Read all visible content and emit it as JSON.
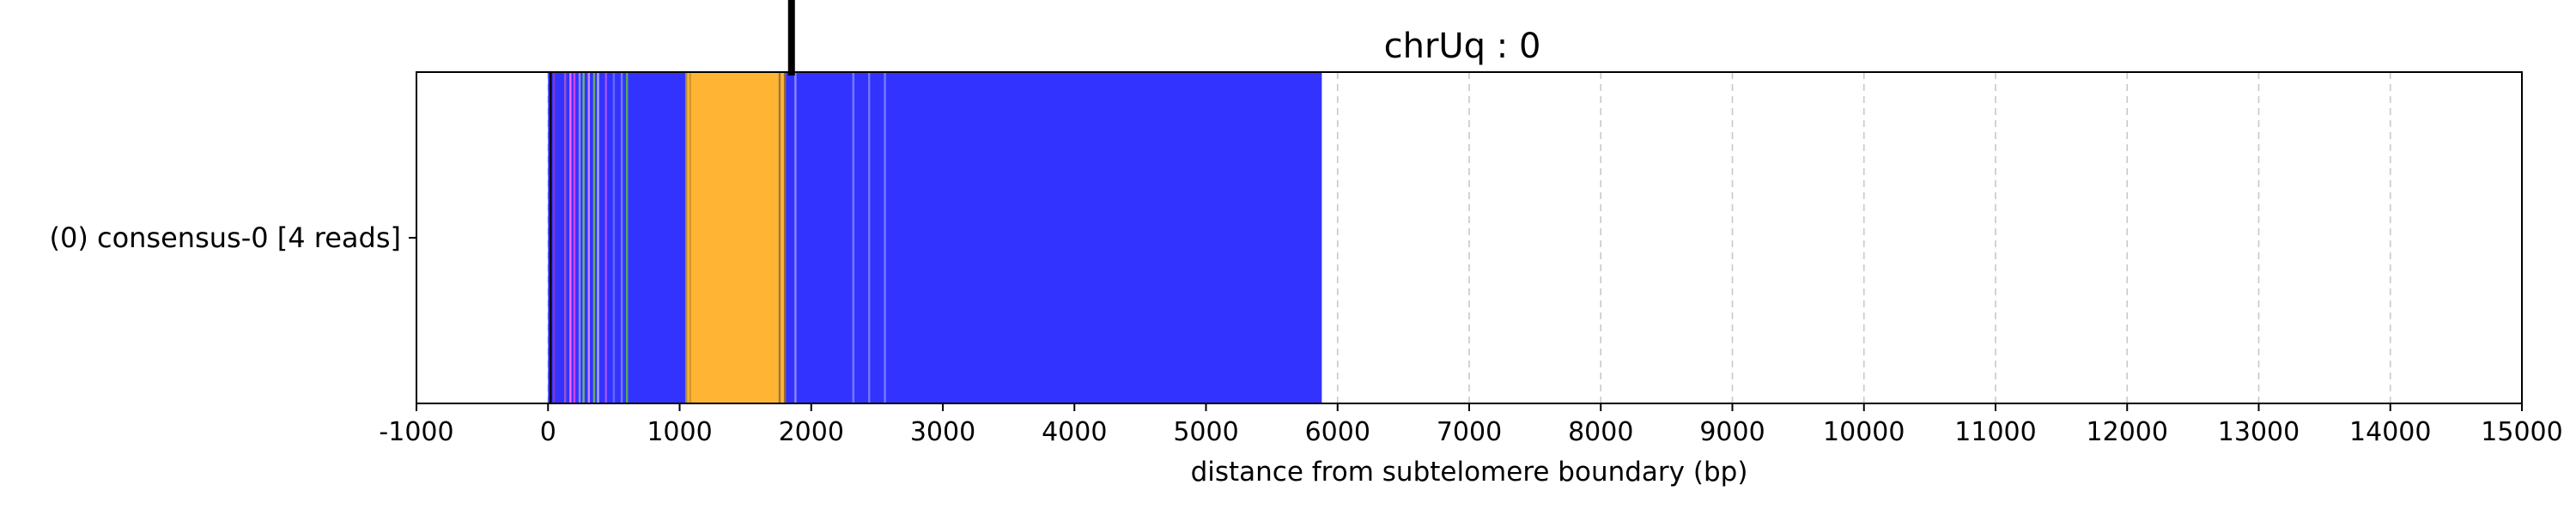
{
  "chart_data": {
    "type": "bar",
    "title": "chrUq : 0",
    "xlabel": "distance from subtelomere boundary (bp)",
    "ylabel": "",
    "xlim": [
      -1000,
      15000
    ],
    "xticks": [
      -1000,
      0,
      1000,
      2000,
      3000,
      4000,
      5000,
      6000,
      7000,
      8000,
      9000,
      10000,
      11000,
      12000,
      13000,
      14000,
      15000
    ],
    "grid": "vertical dashed",
    "rows": [
      {
        "label": "(0) consensus-0 [4 reads]",
        "segments": [
          {
            "start": 0,
            "end": 1050,
            "color": "#3333ff"
          },
          {
            "start": 1050,
            "end": 1800,
            "color": "#ffb533"
          },
          {
            "start": 1800,
            "end": 5880,
            "color": "#3333ff"
          }
        ],
        "stripes": [
          {
            "x": 20,
            "color": "#000000"
          },
          {
            "x": 45,
            "color": "#8833cc"
          },
          {
            "x": 130,
            "color": "#9955cc"
          },
          {
            "x": 170,
            "color": "#ff66ff"
          },
          {
            "x": 200,
            "color": "#cc44ee"
          },
          {
            "x": 240,
            "color": "#8888ff"
          },
          {
            "x": 270,
            "color": "#66bb66"
          },
          {
            "x": 310,
            "color": "#cc88ff"
          },
          {
            "x": 350,
            "color": "#66aa66"
          },
          {
            "x": 380,
            "color": "#aaaaff"
          },
          {
            "x": 440,
            "color": "#9955ff"
          },
          {
            "x": 500,
            "color": "#6666ff"
          },
          {
            "x": 560,
            "color": "#7777ff"
          },
          {
            "x": 600,
            "color": "#55aa55"
          },
          {
            "x": 1050,
            "color": "#aa8844"
          },
          {
            "x": 1080,
            "color": "#cc9933"
          },
          {
            "x": 1760,
            "color": "#997744"
          },
          {
            "x": 1800,
            "color": "#996633"
          },
          {
            "x": 1880,
            "color": "#8888ff"
          },
          {
            "x": 2320,
            "color": "#7777ff"
          },
          {
            "x": 2440,
            "color": "#7777ff"
          },
          {
            "x": 2560,
            "color": "#7777ff"
          }
        ]
      }
    ],
    "marker": {
      "x": 1850,
      "color": "#000000"
    },
    "colors": {
      "blue": "#3333ff",
      "orange": "#ffb533",
      "grid": "#c8c8c8"
    }
  }
}
